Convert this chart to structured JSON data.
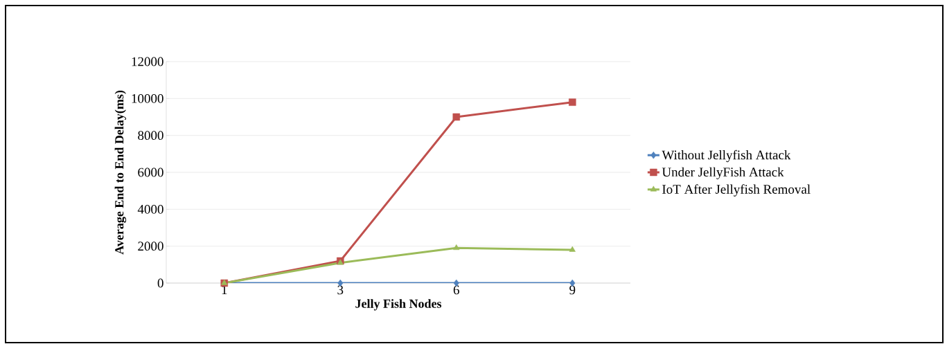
{
  "chart_data": {
    "type": "line",
    "xlabel": "Jelly Fish Nodes",
    "ylabel": "Average End to End Delay(ms)",
    "categories": [
      "1",
      "3",
      "6",
      "9"
    ],
    "series": [
      {
        "name": "Without Jellyfish Attack",
        "color": "#4f81bd",
        "marker": "diamond",
        "values": [
          0,
          0,
          0,
          0
        ]
      },
      {
        "name": "Under JellyFish Attack",
        "color": "#c0504d",
        "marker": "square",
        "values": [
          0,
          1200,
          9000,
          9800
        ]
      },
      {
        "name": "IoT After Jellyfish Removal",
        "color": "#9bbb59",
        "marker": "triangle",
        "values": [
          0,
          1100,
          1900,
          1800
        ]
      }
    ],
    "ylim": [
      0,
      12000
    ],
    "yticks": [
      0,
      2000,
      4000,
      6000,
      8000,
      10000,
      12000
    ],
    "grid": "y",
    "legend": "right"
  }
}
